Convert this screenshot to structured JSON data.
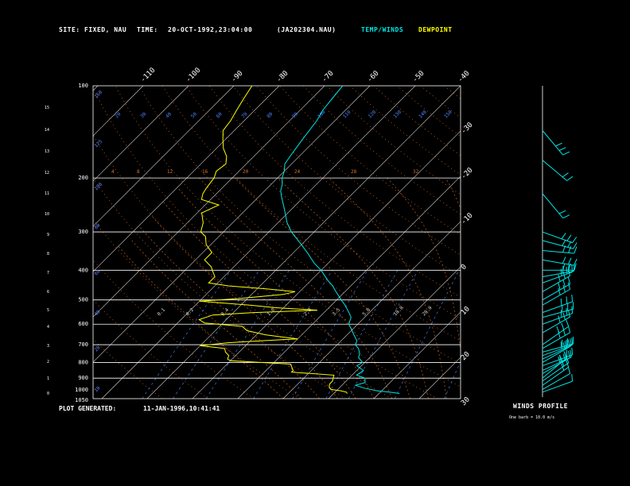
{
  "header": {
    "site_label": "SITE:",
    "site_value": "FIXED, NAU",
    "time_label": "TIME:",
    "time_value": "20-OCT-1992,23:04:00",
    "file_id": "(JA202304.NAU)",
    "legend_temp": "TEMP/WINDS",
    "legend_dewpoint": "DEWPOINT"
  },
  "footer": {
    "generated_label": "PLOT GENERATED:",
    "generated_value": "11-JAN-1996,10:41:41"
  },
  "winds": {
    "title": "WINDS PROFILE",
    "note": "One barb = 10.0 m/s"
  },
  "colors": {
    "temp": "#00e5e5",
    "dewpoint": "#ffff00",
    "grid": "#ffffff",
    "isotherm": "#d8d8d8",
    "dry_adiabat": "#e07020",
    "moist_adiabat": "#c06020",
    "mixing_ratio": "#4c88ff",
    "height_label": "#6688ff",
    "barb": "#00e5e5"
  },
  "chart_data": {
    "type": "line",
    "diagram": "skew-T log-P",
    "pressure_ticks": [
      100,
      200,
      300,
      400,
      500,
      600,
      700,
      800,
      900,
      1000,
      1050
    ],
    "pressure_lines": [
      200,
      300,
      400,
      500,
      600,
      700,
      800,
      900
    ],
    "pressure_range": [
      100,
      1050
    ],
    "height_ticks_km": [
      "0",
      "1",
      "2",
      "3",
      "4",
      "5",
      "6",
      "7",
      "8",
      "9",
      "10",
      "11",
      "12",
      "13",
      "14",
      "15"
    ],
    "isotherm_labels_top": [
      "-110",
      "-100",
      "-90",
      "-80",
      "-70",
      "-60",
      "-50",
      "-40"
    ],
    "isotherm_labels_right": [
      "-30",
      "-20",
      "-10",
      "0",
      "10",
      "20",
      "30"
    ],
    "theta_labels": [
      "20",
      "30",
      "40",
      "50",
      "60",
      "70",
      "80",
      "90",
      "100",
      "110",
      "120",
      "130",
      "140",
      "150"
    ],
    "moist_labels": [
      "4",
      "8",
      "12",
      "16",
      "20",
      "24",
      "28",
      "32"
    ],
    "mixing_ratio_labels": [
      "0.1",
      "0.2",
      "0.4",
      "1.0",
      "2.0",
      "3.5",
      "5.0",
      "10.0",
      "20.0"
    ],
    "height_labels_left": [
      "160",
      "125",
      "100",
      "80",
      "60",
      "40",
      "20",
      "10",
      "0"
    ],
    "series": [
      {
        "name": "TEMP",
        "points": [
          [
            1010,
            14.5
          ],
          [
            1000,
            12.0
          ],
          [
            990,
            9.0
          ],
          [
            970,
            5.5
          ],
          [
            950,
            3.0
          ],
          [
            930,
            4.5
          ],
          [
            900,
            3.5
          ],
          [
            880,
            1.0
          ],
          [
            850,
            1.5
          ],
          [
            820,
            -1.0
          ],
          [
            800,
            -0.5
          ],
          [
            770,
            -2.5
          ],
          [
            750,
            -3.0
          ],
          [
            720,
            -4.5
          ],
          [
            700,
            -6.0
          ],
          [
            680,
            -6.5
          ],
          [
            650,
            -8.5
          ],
          [
            620,
            -10.5
          ],
          [
            600,
            -12.0
          ],
          [
            570,
            -13.0
          ],
          [
            550,
            -14.5
          ],
          [
            520,
            -17.0
          ],
          [
            500,
            -19.0
          ],
          [
            470,
            -22.0
          ],
          [
            450,
            -24.0
          ],
          [
            430,
            -26.5
          ],
          [
            400,
            -30.0
          ],
          [
            380,
            -33.0
          ],
          [
            350,
            -37.0
          ],
          [
            330,
            -40.0
          ],
          [
            300,
            -45.0
          ],
          [
            280,
            -48.0
          ],
          [
            250,
            -52.0
          ],
          [
            230,
            -55.0
          ],
          [
            220,
            -56.5
          ],
          [
            210,
            -57.5
          ],
          [
            200,
            -59.0
          ],
          [
            190,
            -60.0
          ],
          [
            180,
            -61.5
          ],
          [
            170,
            -62.0
          ],
          [
            160,
            -62.5
          ],
          [
            150,
            -63.0
          ],
          [
            140,
            -63.5
          ],
          [
            130,
            -64.0
          ],
          [
            120,
            -65.0
          ],
          [
            110,
            -65.5
          ],
          [
            100,
            -66.0
          ]
        ]
      },
      {
        "name": "DEWPOINT",
        "points": [
          [
            1010,
            3.0
          ],
          [
            1000,
            2.5
          ],
          [
            990,
            1.0
          ],
          [
            980,
            -1.5
          ],
          [
            960,
            -2.5
          ],
          [
            940,
            -3.0
          ],
          [
            920,
            -3.0
          ],
          [
            900,
            -3.5
          ],
          [
            880,
            -4.0
          ],
          [
            860,
            -14.0
          ],
          [
            850,
            -14.0
          ],
          [
            840,
            -14.5
          ],
          [
            830,
            -15.0
          ],
          [
            820,
            -15.5
          ],
          [
            810,
            -16.0
          ],
          [
            800,
            -23.0
          ],
          [
            790,
            -30.0
          ],
          [
            780,
            -31.0
          ],
          [
            760,
            -31.5
          ],
          [
            740,
            -33.0
          ],
          [
            720,
            -34.0
          ],
          [
            705,
            -40.0
          ],
          [
            690,
            -34.5
          ],
          [
            680,
            -28.0
          ],
          [
            670,
            -20.0
          ],
          [
            660,
            -24.0
          ],
          [
            650,
            -28.0
          ],
          [
            630,
            -33.0
          ],
          [
            610,
            -35.0
          ],
          [
            595,
            -44.0
          ],
          [
            580,
            -46.0
          ],
          [
            560,
            -44.0
          ],
          [
            550,
            -36.0
          ],
          [
            540,
            -22.0
          ],
          [
            530,
            -32.0
          ],
          [
            520,
            -38.0
          ],
          [
            505,
            -50.0
          ],
          [
            495,
            -42.0
          ],
          [
            480,
            -33.0
          ],
          [
            470,
            -31.0
          ],
          [
            460,
            -38.0
          ],
          [
            450,
            -47.0
          ],
          [
            440,
            -52.0
          ],
          [
            420,
            -52.0
          ],
          [
            400,
            -54.0
          ],
          [
            390,
            -55.0
          ],
          [
            370,
            -58.0
          ],
          [
            350,
            -58.0
          ],
          [
            330,
            -61.0
          ],
          [
            310,
            -63.0
          ],
          [
            300,
            -65.0
          ],
          [
            280,
            -66.5
          ],
          [
            260,
            -69.0
          ],
          [
            245,
            -67.0
          ],
          [
            235,
            -72.0
          ],
          [
            225,
            -73.0
          ],
          [
            215,
            -73.5
          ],
          [
            200,
            -74.0
          ],
          [
            190,
            -75.0
          ],
          [
            180,
            -74.5
          ],
          [
            170,
            -76.0
          ],
          [
            160,
            -78.5
          ],
          [
            150,
            -80.5
          ],
          [
            140,
            -82.5
          ],
          [
            130,
            -83.0
          ],
          [
            120,
            -84.0
          ],
          [
            110,
            -85.0
          ],
          [
            100,
            -86.0
          ]
        ]
      }
    ],
    "wind_barbs": [
      {
        "p": 1000,
        "dir": 290,
        "spd": 6
      },
      {
        "p": 980,
        "dir": 300,
        "spd": 12
      },
      {
        "p": 950,
        "dir": 305,
        "spd": 15
      },
      {
        "p": 920,
        "dir": 305,
        "spd": 20
      },
      {
        "p": 900,
        "dir": 310,
        "spd": 22
      },
      {
        "p": 870,
        "dir": 300,
        "spd": 25
      },
      {
        "p": 850,
        "dir": 295,
        "spd": 25
      },
      {
        "p": 820,
        "dir": 290,
        "spd": 22
      },
      {
        "p": 800,
        "dir": 300,
        "spd": 20
      },
      {
        "p": 780,
        "dir": 295,
        "spd": 22
      },
      {
        "p": 760,
        "dir": 290,
        "spd": 25
      },
      {
        "p": 740,
        "dir": 285,
        "spd": 25
      },
      {
        "p": 720,
        "dir": 300,
        "spd": 28
      },
      {
        "p": 700,
        "dir": 305,
        "spd": 30
      },
      {
        "p": 640,
        "dir": 300,
        "spd": 30
      },
      {
        "p": 600,
        "dir": 290,
        "spd": 32
      },
      {
        "p": 570,
        "dir": 285,
        "spd": 30
      },
      {
        "p": 550,
        "dir": 290,
        "spd": 30
      },
      {
        "p": 520,
        "dir": 300,
        "spd": 30
      },
      {
        "p": 500,
        "dir": 300,
        "spd": 32
      },
      {
        "p": 470,
        "dir": 300,
        "spd": 30
      },
      {
        "p": 440,
        "dir": 290,
        "spd": 30
      },
      {
        "p": 420,
        "dir": 280,
        "spd": 32
      },
      {
        "p": 400,
        "dir": 270,
        "spd": 30
      },
      {
        "p": 370,
        "dir": 260,
        "spd": 28
      },
      {
        "p": 345,
        "dir": 265,
        "spd": 30
      },
      {
        "p": 320,
        "dir": 255,
        "spd": 30
      },
      {
        "p": 300,
        "dir": 250,
        "spd": 30
      },
      {
        "p": 225,
        "dir": 220,
        "spd": 24
      },
      {
        "p": 175,
        "dir": 230,
        "spd": 22
      },
      {
        "p": 140,
        "dir": 220,
        "spd": 28
      }
    ]
  }
}
